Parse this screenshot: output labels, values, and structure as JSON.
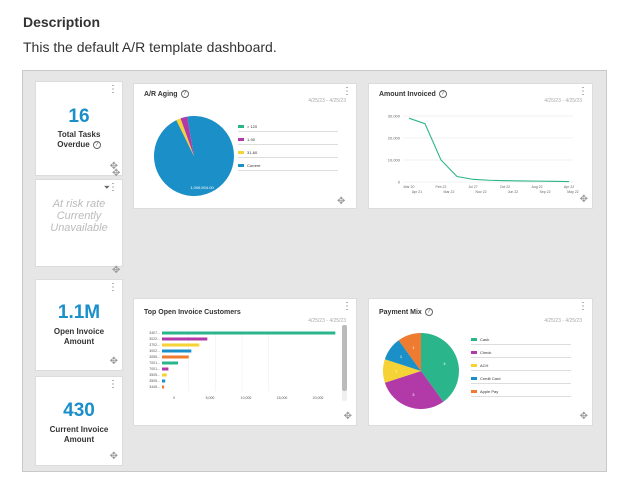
{
  "description": {
    "title": "Description",
    "text": "This the default A/R template dashboard."
  },
  "kpis": {
    "tasks_overdue": {
      "value": "16",
      "label_line1": "Total Tasks",
      "label_line2": "Overdue"
    },
    "at_risk": {
      "line1": "At risk rate",
      "line2": "Currently",
      "line3": "Unavailable"
    },
    "open_invoice": {
      "value": "1.1M",
      "label_line1": "Open Invoice",
      "label_line2": "Amount"
    },
    "current_invoice": {
      "value": "430",
      "label_line1": "Current Invoice",
      "label_line2": "Amount"
    }
  },
  "charts_meta": {
    "date_range": "4/25/23 - 4/25/23",
    "help_glyph": "?",
    "kebab_glyph": "⋮",
    "move_glyph": "✥",
    "filter_glyph": "⏷"
  },
  "colors": {
    "green": "#2bb58a",
    "purple": "#b13aa8",
    "yellow": "#f5d235",
    "blue": "#1b8fc7",
    "orange": "#ee7b30",
    "kpi_blue": "#1a8fc9"
  },
  "chart_data": [
    {
      "id": "ar_aging",
      "type": "pie",
      "title": "A/R Aging",
      "slice_label": "1,006,504.00",
      "legend_position": "right",
      "slices": [
        {
          "label": "> 120",
          "value": 0,
          "color": "#2bb58a"
        },
        {
          "label": "1-90",
          "value": 27,
          "color": "#b13aa8"
        },
        {
          "label": "31-60",
          "value": 18,
          "color": "#f5d235"
        },
        {
          "label": "Current",
          "value": 955,
          "color": "#1b8fc7"
        }
      ]
    },
    {
      "id": "amount_invoiced",
      "type": "line",
      "title": "Amount Invoiced",
      "yticks": [
        "30,000",
        "20,000",
        "10,000",
        "0"
      ],
      "ylim": [
        0,
        30000
      ],
      "xticks_top": [
        "Mar 20",
        "Feb 22",
        "Jul 27",
        "Oct 22",
        "Aug 22",
        "Apr 22"
      ],
      "xticks_bottom": [
        "Apr 21",
        "Mar 22",
        "Nov 22",
        "Jun 22",
        "Sep 22",
        "May 22"
      ],
      "series": [
        {
          "values": [
            29000,
            26500,
            10000,
            2500,
            1200,
            800,
            600,
            500,
            400,
            300,
            200
          ]
        }
      ],
      "grid": true
    },
    {
      "id": "top_open_invoice_customers",
      "type": "bar",
      "orientation": "horizontal",
      "title": "Top Open Invoice Customers",
      "categories": [
        "3407...",
        "3022...",
        "3702...",
        "3002...",
        "3055...",
        "7001...",
        "7001...",
        "3505...",
        "3505...",
        "3445..."
      ],
      "values": [
        32500,
        8500,
        7000,
        5500,
        5000,
        3000,
        1200,
        900,
        600,
        400
      ],
      "xticks": [
        "0",
        "5,000",
        "10,000",
        "15,000",
        "20,000"
      ],
      "xlim": [
        0,
        33000
      ],
      "colors": [
        "#2bb58a",
        "#b13aa8",
        "#f5d235",
        "#1b8fc7",
        "#ee7b30",
        "#2bb58a",
        "#b13aa8",
        "#f5d235",
        "#1b8fc7",
        "#ee7b30"
      ]
    },
    {
      "id": "payment_mix",
      "type": "pie",
      "title": "Payment Mix",
      "legend_position": "right",
      "slices": [
        {
          "label": "Cash",
          "value": 4,
          "color": "#2bb58a"
        },
        {
          "label": "Check",
          "value": 3,
          "color": "#b13aa8"
        },
        {
          "label": "ACH",
          "value": 1,
          "color": "#f5d235"
        },
        {
          "label": "Credit Card",
          "value": 1,
          "color": "#1b8fc7"
        },
        {
          "label": "Apple Pay",
          "value": 1,
          "color": "#ee7b30"
        }
      ]
    }
  ]
}
